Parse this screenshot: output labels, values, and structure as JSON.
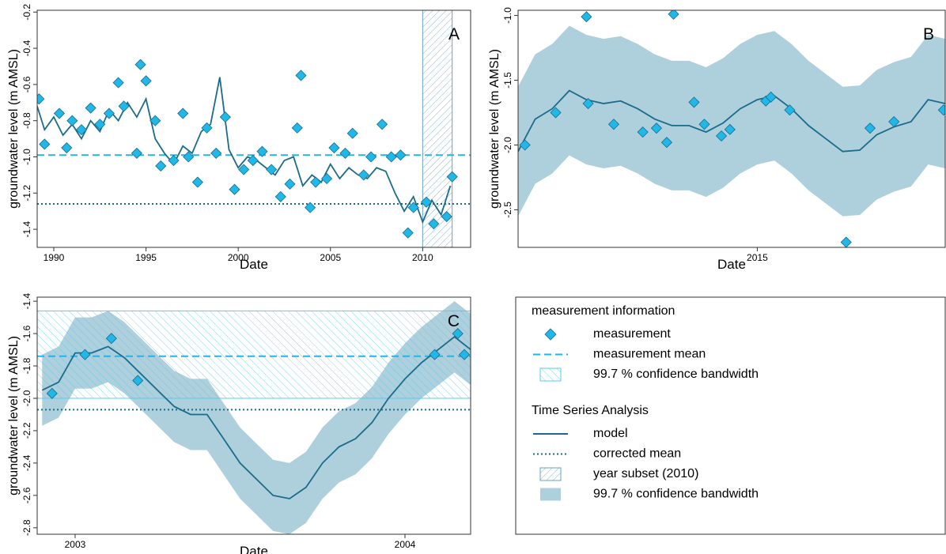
{
  "chart_data": [
    {
      "type": "line",
      "label": "A",
      "xlabel": "Date",
      "ylabel": "groundwater level (m AMSL)",
      "xlim": [
        1989.1,
        2012.6
      ],
      "ylim": [
        -1.5,
        -0.19
      ],
      "xticks": [
        1990,
        1995,
        2000,
        2005,
        2010
      ],
      "yticks": [
        -0.2,
        -0.4,
        -0.6,
        -0.8,
        {
          "value": -1,
          "label": "-1.0"
        },
        -1.2,
        -1.4
      ],
      "series": [
        {
          "name": "model",
          "kind": "line",
          "color": "#1b6b8a",
          "x": [
            1989.1,
            1989.5,
            1990,
            1990.5,
            1991,
            1991.5,
            1992,
            1992.5,
            1993,
            1993.5,
            1994,
            1994.5,
            1995,
            1995.5,
            1996,
            1996.5,
            1997,
            1997.5,
            1998,
            1998.5,
            1999,
            1999.5,
            2000,
            2000.5,
            2001,
            2001.5,
            2002,
            2002.5,
            2003,
            2003.5,
            2004,
            2004.5,
            2005,
            2005.5,
            2006,
            2006.5,
            2007,
            2007.5,
            2008,
            2008.5,
            2009,
            2009.5,
            2010,
            2010.5,
            2011,
            2011.5
          ],
          "values": [
            -0.72,
            -0.85,
            -0.78,
            -0.88,
            -0.82,
            -0.9,
            -0.8,
            -0.86,
            -0.74,
            -0.8,
            -0.7,
            -0.78,
            -0.68,
            -0.9,
            -0.98,
            -1.04,
            -0.94,
            -0.98,
            -0.86,
            -0.82,
            -0.56,
            -0.96,
            -1.06,
            -1.0,
            -1.02,
            -1.06,
            -1.1,
            -1.02,
            -1.0,
            -1.16,
            -1.1,
            -1.14,
            -1.04,
            -1.12,
            -1.06,
            -1.1,
            -1.12,
            -1.06,
            -1.08,
            -1.2,
            -1.3,
            -1.22,
            -1.36,
            -1.24,
            -1.32,
            -1.16
          ]
        },
        {
          "name": "measurement",
          "kind": "points",
          "color": "#1fb8e8",
          "x": [
            1989.2,
            1989.5,
            1990.3,
            1990.7,
            1991,
            1991.5,
            1992,
            1992.5,
            1993,
            1993.5,
            1993.8,
            1994.5,
            1994.7,
            1995,
            1995.5,
            1995.8,
            1996.5,
            1997,
            1997.3,
            1997.8,
            1998.3,
            1998.8,
            1999.3,
            1999.8,
            2000.3,
            2000.8,
            2001.3,
            2001.8,
            2002.3,
            2002.8,
            2003.2,
            2003.4,
            2003.9,
            2004.2,
            2004.8,
            2005.2,
            2005.8,
            2006.2,
            2006.8,
            2007.2,
            2007.8,
            2008.3,
            2008.8,
            2009.2,
            2009.5,
            2010.2,
            2010.6,
            2011.3,
            2011.6
          ],
          "values": [
            -0.68,
            -0.93,
            -0.76,
            -0.95,
            -0.8,
            -0.85,
            -0.73,
            -0.82,
            -0.76,
            -0.59,
            -0.72,
            -0.98,
            -0.49,
            -0.58,
            -0.8,
            -1.05,
            -1.02,
            -0.76,
            -1.0,
            -1.14,
            -0.84,
            -0.98,
            -0.78,
            -1.18,
            -1.07,
            -1.02,
            -0.97,
            -1.07,
            -1.22,
            -1.15,
            -0.84,
            -0.55,
            -1.28,
            -1.14,
            -1.12,
            -0.95,
            -0.98,
            -0.87,
            -1.1,
            -1.0,
            -0.82,
            -1.0,
            -0.99,
            -1.42,
            -1.28,
            -1.25,
            -1.37,
            -1.33,
            -1.11
          ]
        }
      ],
      "measurement_mean": -0.99,
      "corrected_mean": -1.26,
      "subset": [
        2010,
        2011.6
      ]
    },
    {
      "type": "line",
      "label": "B",
      "xlabel": "Date",
      "ylabel": "groundwater level (m AMSL)",
      "xlim": [
        2013.6,
        2016.1
      ],
      "ylim": [
        -2.79,
        -0.96
      ],
      "xticks": [
        2015
      ],
      "yticks": [
        {
          "value": -1,
          "label": "-1.0"
        },
        -1.5,
        {
          "value": -2,
          "label": "-2.0"
        },
        -2.5
      ],
      "band": {
        "name": "99.7 % confidence bandwidth",
        "color": "#aecfdc",
        "x": [
          2013.6,
          2013.7,
          2013.8,
          2013.9,
          2014,
          2014.1,
          2014.2,
          2014.3,
          2014.4,
          2014.5,
          2014.6,
          2014.7,
          2014.8,
          2014.9,
          2015,
          2015.1,
          2015.2,
          2015.3,
          2015.4,
          2015.5,
          2015.6,
          2015.7,
          2015.8,
          2015.9,
          2016,
          2016.1
        ],
        "upper": [
          -1.55,
          -1.3,
          -1.22,
          -1.08,
          -1.15,
          -1.18,
          -1.16,
          -1.22,
          -1.3,
          -1.35,
          -1.35,
          -1.4,
          -1.33,
          -1.22,
          -1.15,
          -1.12,
          -1.22,
          -1.35,
          -1.45,
          -1.55,
          -1.54,
          -1.42,
          -1.36,
          -1.32,
          -1.15,
          -1.18
        ],
        "lower": [
          -2.55,
          -2.3,
          -2.22,
          -2.08,
          -2.15,
          -2.18,
          -2.16,
          -2.22,
          -2.3,
          -2.35,
          -2.35,
          -2.4,
          -2.33,
          -2.22,
          -2.15,
          -2.12,
          -2.22,
          -2.35,
          -2.45,
          -2.55,
          -2.54,
          -2.42,
          -2.36,
          -2.32,
          -2.15,
          -2.18
        ]
      },
      "series": [
        {
          "name": "model",
          "kind": "line",
          "color": "#1b6b8a",
          "x": [
            2013.6,
            2013.7,
            2013.8,
            2013.9,
            2014,
            2014.1,
            2014.2,
            2014.3,
            2014.4,
            2014.5,
            2014.6,
            2014.7,
            2014.8,
            2014.9,
            2015,
            2015.1,
            2015.2,
            2015.3,
            2015.4,
            2015.5,
            2015.6,
            2015.7,
            2015.8,
            2015.9,
            2016,
            2016.1
          ],
          "values": [
            -2.05,
            -1.8,
            -1.72,
            -1.58,
            -1.65,
            -1.68,
            -1.66,
            -1.72,
            -1.8,
            -1.85,
            -1.85,
            -1.9,
            -1.83,
            -1.72,
            -1.65,
            -1.62,
            -1.72,
            -1.85,
            -1.95,
            -2.05,
            -2.04,
            -1.92,
            -1.86,
            -1.82,
            -1.65,
            -1.68
          ]
        },
        {
          "name": "measurement",
          "kind": "points",
          "color": "#1fb8e8",
          "x": [
            2013.64,
            2013.82,
            2014.0,
            2014.01,
            2014.16,
            2014.33,
            2014.41,
            2014.47,
            2014.51,
            2014.63,
            2014.69,
            2014.79,
            2014.84,
            2015.05,
            2015.08,
            2015.19,
            2015.52,
            2015.66,
            2015.8,
            2016.09
          ],
          "values": [
            -2.0,
            -1.75,
            -1.01,
            -1.68,
            -1.84,
            -1.9,
            -1.87,
            -1.98,
            -0.99,
            -1.67,
            -1.84,
            -1.93,
            -1.88,
            -1.66,
            -1.63,
            -1.73,
            -2.75,
            -1.87,
            -1.82,
            -1.73
          ]
        }
      ]
    },
    {
      "type": "line",
      "label": "C",
      "xlabel": "Date",
      "ylabel": "groundwater level (m AMSL)",
      "xlim": [
        2002.885,
        2004.199
      ],
      "ylim": [
        -2.84,
        -1.375
      ],
      "xticks": [
        2003,
        2004
      ],
      "yticks": [
        -1.4,
        -1.6,
        -1.8,
        {
          "value": -2,
          "label": "-2.0"
        },
        -2.2,
        -2.4,
        -2.6,
        -2.8
      ],
      "band": {
        "name": "99.7 % confidence bandwidth",
        "color": "#aecfdc",
        "x": [
          2002.9,
          2002.95,
          2003,
          2003.05,
          2003.1,
          2003.15,
          2003.2,
          2003.25,
          2003.3,
          2003.35,
          2003.4,
          2003.45,
          2003.5,
          2003.55,
          2003.6,
          2003.65,
          2003.7,
          2003.75,
          2003.8,
          2003.85,
          2003.9,
          2003.95,
          2004,
          2004.05,
          2004.1,
          2004.15,
          2004.2
        ],
        "upper": [
          -1.73,
          -1.68,
          -1.5,
          -1.5,
          -1.46,
          -1.53,
          -1.63,
          -1.73,
          -1.83,
          -1.88,
          -1.88,
          -2.03,
          -2.18,
          -2.28,
          -2.38,
          -2.4,
          -2.33,
          -2.18,
          -2.08,
          -2.03,
          -1.93,
          -1.78,
          -1.66,
          -1.56,
          -1.48,
          -1.4,
          -1.48
        ],
        "lower": [
          -2.17,
          -2.12,
          -1.94,
          -1.94,
          -1.9,
          -1.97,
          -2.07,
          -2.17,
          -2.27,
          -2.32,
          -2.32,
          -2.47,
          -2.62,
          -2.72,
          -2.82,
          -2.84,
          -2.77,
          -2.62,
          -2.52,
          -2.47,
          -2.37,
          -2.22,
          -2.1,
          -2.0,
          -1.92,
          -1.84,
          -1.92
        ]
      },
      "series": [
        {
          "name": "model",
          "kind": "line",
          "color": "#1b6b8a",
          "x": [
            2002.9,
            2002.95,
            2003,
            2003.05,
            2003.1,
            2003.15,
            2003.2,
            2003.25,
            2003.3,
            2003.35,
            2003.4,
            2003.45,
            2003.5,
            2003.55,
            2003.6,
            2003.65,
            2003.7,
            2003.75,
            2003.8,
            2003.85,
            2003.9,
            2003.95,
            2004,
            2004.05,
            2004.1,
            2004.15,
            2004.2
          ],
          "values": [
            -1.95,
            -1.9,
            -1.72,
            -1.72,
            -1.68,
            -1.75,
            -1.85,
            -1.95,
            -2.05,
            -2.1,
            -2.1,
            -2.25,
            -2.4,
            -2.5,
            -2.6,
            -2.62,
            -2.55,
            -2.4,
            -2.3,
            -2.25,
            -2.15,
            -2.0,
            -1.88,
            -1.78,
            -1.7,
            -1.62,
            -1.7
          ]
        },
        {
          "name": "measurement",
          "kind": "points",
          "color": "#1fb8e8",
          "x": [
            2002.93,
            2003.03,
            2003.11,
            2003.19,
            2004.09,
            2004.16,
            2004.18
          ],
          "values": [
            -1.97,
            -1.73,
            -1.63,
            -1.89,
            -1.73,
            -1.6,
            -1.73
          ]
        }
      ],
      "measurement_mean": -1.74,
      "corrected_mean": -2.07,
      "measurement_band": [
        -2.0,
        -1.46
      ]
    }
  ],
  "legend": {
    "groups": [
      {
        "title": "measurement information",
        "items": [
          "measurement",
          "measurement mean",
          "99.7 % confidence bandwidth"
        ]
      },
      {
        "title": "Time Series Analysis",
        "items": [
          "model",
          "corrected mean",
          "year subset (2010)",
          "99.7 % confidence bandwidth"
        ]
      }
    ]
  }
}
